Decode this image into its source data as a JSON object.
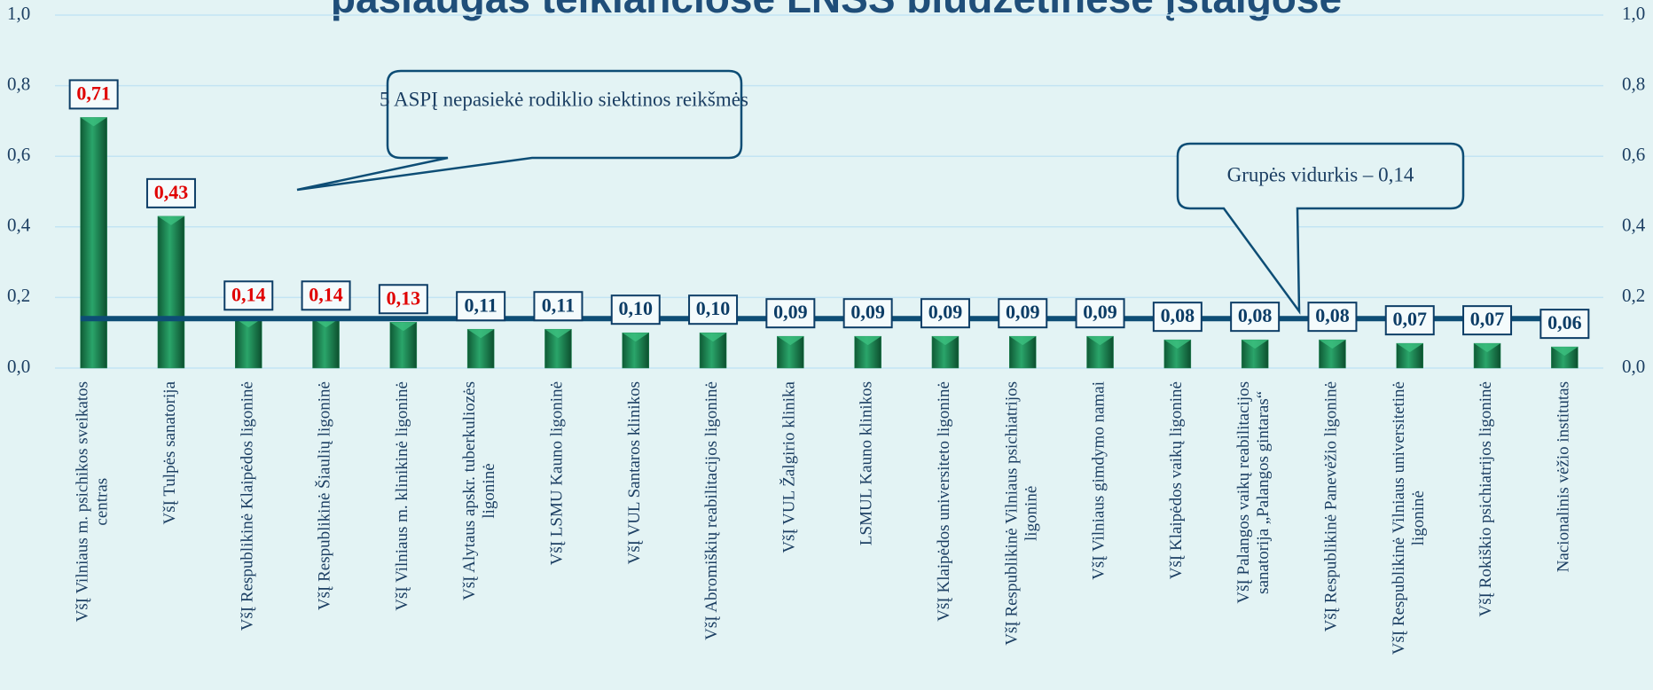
{
  "chart_data": {
    "type": "bar",
    "title": "paslaugas teikiančiose LNSS biudžetinėse įstaigose",
    "categories": [
      "VšĮ Vilniaus m. psichikos sveikatos centras",
      "VšĮ Tulpės sanatorija",
      "VšĮ Respublikinė Klaipėdos ligoninė",
      "VšĮ Respublikinė Šiaulių ligoninė",
      "VšĮ Vilniaus m. klinikinė ligoninė",
      "VšĮ Alytaus apskr. tuberkuliozės ligoninė",
      "VšĮ LSMU Kauno ligoninė",
      "VšĮ VUL Santaros klinikos",
      "VšĮ Abromiškių reabilitacijos ligoninė",
      "VšĮ VUL Žalgirio klinika",
      "LSMUL Kauno klinikos",
      "VšĮ Klaipėdos universiteto ligoninė",
      "VšĮ Respublikinė Vilniaus psichiatrijos ligoninė",
      "VšĮ Vilniaus gimdymo namai",
      "VšĮ Klaipėdos vaikų ligoninė",
      "VšĮ Palangos vaikų reabilitacijos sanatorija „Palangos gintaras“",
      "VšĮ Respublikinė Panevėžio ligoninė",
      "VšĮ Respublikinė Vilniaus universitetinė ligoninė",
      "VšĮ Rokiškio psichiatrijos ligoninė",
      "Nacionalinis vėžio institutas"
    ],
    "values": [
      0.71,
      0.43,
      0.14,
      0.14,
      0.13,
      0.11,
      0.11,
      0.1,
      0.1,
      0.09,
      0.09,
      0.09,
      0.09,
      0.09,
      0.08,
      0.08,
      0.08,
      0.07,
      0.07,
      0.06
    ],
    "value_labels": [
      "0,71",
      "0,43",
      "0,14",
      "0,14",
      "0,13",
      "0,11",
      "0,11",
      "0,10",
      "0,10",
      "0,09",
      "0,09",
      "0,09",
      "0,09",
      "0,09",
      "0,08",
      "0,08",
      "0,08",
      "0,07",
      "0,07",
      "0,06"
    ],
    "label_colors": [
      "#e00000",
      "#e00000",
      "#e00000",
      "#e00000",
      "#e00000",
      "#0d3d66",
      "#0d3d66",
      "#0d3d66",
      "#0d3d66",
      "#0d3d66",
      "#0d3d66",
      "#0d3d66",
      "#0d3d66",
      "#0d3d66",
      "#0d3d66",
      "#0d3d66",
      "#0d3d66",
      "#0d3d66",
      "#0d3d66",
      "#0d3d66"
    ],
    "color": "#1e8a55",
    "average": 0.14,
    "average_color": "#0d4d75",
    "annotations": [
      "5 ASPĮ nepasiekė rodiklio siektinos reikšmės",
      "Grupės vidurkis – 0,14"
    ],
    "ylim": [
      0,
      1
    ],
    "yticks": [
      {
        "value": 0,
        "label": "0,0"
      },
      {
        "value": 0.2,
        "label": "0,2"
      },
      {
        "value": 0.4,
        "label": "0,4"
      },
      {
        "value": 0.6,
        "label": "0,6"
      },
      {
        "value": 0.8,
        "label": "0,8"
      },
      {
        "value": 1,
        "label": "1,0"
      }
    ],
    "y2lim": [
      0,
      1
    ],
    "y2ticks": [
      {
        "value": 0,
        "label": "0,0"
      },
      {
        "value": 0.2,
        "label": "0,2"
      },
      {
        "value": 0.4,
        "label": "0,4"
      },
      {
        "value": 0.6,
        "label": "0,6"
      },
      {
        "value": 0.8,
        "label": "0,8"
      },
      {
        "value": 1,
        "label": "1,0"
      }
    ],
    "grid": true
  }
}
